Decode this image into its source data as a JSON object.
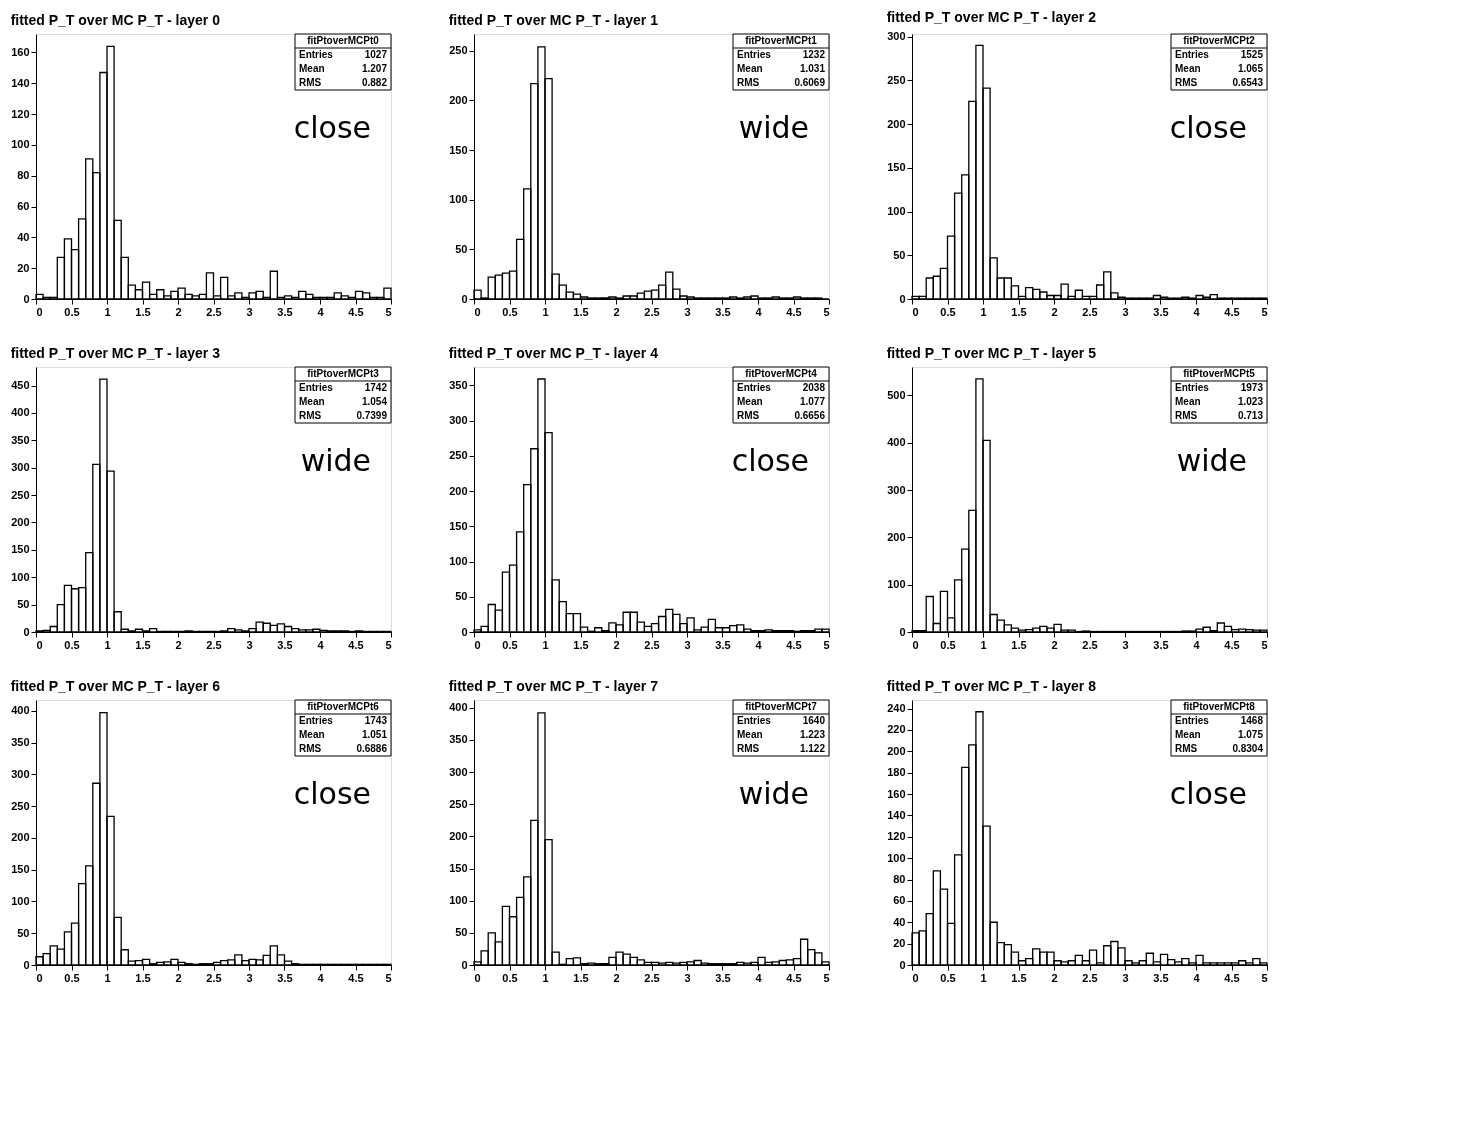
{
  "chart_data": [
    {
      "type": "histogram",
      "title": "fitted P_T over MC P_T - layer 0",
      "color": "#000000",
      "annotations": [
        "close",
        "fitPtoverMCPt0",
        "Entries",
        "1027",
        "Mean",
        "1.207",
        "RMS",
        "0.882"
      ],
      "xlim": [
        0,
        5
      ],
      "xticks": [
        0,
        0.5,
        1,
        1.5,
        2,
        2.5,
        3,
        3.5,
        4,
        4.5,
        5
      ],
      "ylim": [
        0,
        172
      ],
      "yticks": [
        0,
        20,
        40,
        60,
        80,
        100,
        120,
        140,
        160
      ],
      "bins": [
        0,
        0.1,
        0.2,
        0.3,
        0.4,
        0.5,
        0.6,
        0.7,
        0.8,
        0.9,
        1,
        1.1,
        1.2,
        1.3,
        1.4,
        1.5,
        1.6,
        1.7,
        1.8,
        1.9,
        2,
        2.1,
        2.2,
        2.3,
        2.4,
        2.5,
        2.6,
        2.7,
        2.8,
        2.9,
        3,
        3.1,
        3.2,
        3.3,
        3.4,
        3.5,
        3.6,
        3.7,
        3.8,
        3.9,
        4,
        4.1,
        4.2,
        4.3,
        4.4,
        4.5,
        4.6,
        4.7,
        4.8,
        4.9,
        5
      ],
      "values": [
        3,
        1,
        1,
        27,
        39,
        32,
        52,
        91,
        82,
        147,
        164,
        51,
        27,
        9,
        6,
        11,
        3,
        6,
        2,
        5,
        7,
        3,
        2,
        3,
        17,
        2,
        14,
        2,
        4,
        1,
        4,
        5,
        1,
        18,
        1,
        2,
        1,
        5,
        3,
        1,
        1,
        1,
        4,
        2,
        1,
        5,
        4,
        1,
        1,
        7
      ]
    },
    {
      "type": "histogram",
      "title": "fitted P_T over MC P_T - layer 1",
      "color": "#000000",
      "annotations": [
        "wide",
        "fitPtoverMCPt1",
        "Entries",
        "1232",
        "Mean",
        "1.031",
        "RMS",
        "0.6069"
      ],
      "xlim": [
        0,
        5
      ],
      "xticks": [
        0,
        0.5,
        1,
        1.5,
        2,
        2.5,
        3,
        3.5,
        4,
        4.5,
        5
      ],
      "ylim": [
        0,
        267
      ],
      "yticks": [
        0,
        50,
        100,
        150,
        200,
        250
      ],
      "bins": [
        0,
        0.1,
        0.2,
        0.3,
        0.4,
        0.5,
        0.6,
        0.7,
        0.8,
        0.9,
        1,
        1.1,
        1.2,
        1.3,
        1.4,
        1.5,
        1.6,
        1.7,
        1.8,
        1.9,
        2,
        2.1,
        2.2,
        2.3,
        2.4,
        2.5,
        2.6,
        2.7,
        2.8,
        2.9,
        3,
        3.1,
        3.2,
        3.3,
        3.4,
        3.5,
        3.6,
        3.7,
        3.8,
        3.9,
        4,
        4.1,
        4.2,
        4.3,
        4.4,
        4.5,
        4.6,
        4.7,
        4.8,
        4.9,
        5
      ],
      "values": [
        9,
        1,
        22,
        24,
        26,
        28,
        60,
        111,
        217,
        254,
        222,
        25,
        14,
        7,
        5,
        2,
        1,
        1,
        1,
        2,
        1,
        3,
        3,
        6,
        8,
        9,
        14,
        27,
        10,
        3,
        2,
        1,
        1,
        1,
        1,
        1,
        2,
        1,
        2,
        3,
        1,
        1,
        2,
        1,
        1,
        2,
        1,
        1,
        1,
        0
      ]
    },
    {
      "type": "histogram",
      "title": "fitted P_T over MC P_T - layer 2",
      "color": "#000000",
      "annotations": [
        "close",
        "fitPtoverMCPt2",
        "Entries",
        "1525",
        "Mean",
        "1.065",
        "RMS",
        "0.6543"
      ],
      "xlim": [
        0,
        5
      ],
      "xticks": [
        0,
        0.5,
        1,
        1.5,
        2,
        2.5,
        3,
        3.5,
        4,
        4.5,
        5
      ],
      "ylim": [
        0,
        303
      ],
      "yticks": [
        0,
        50,
        100,
        150,
        200,
        250,
        300
      ],
      "bins": [
        0,
        0.1,
        0.2,
        0.3,
        0.4,
        0.5,
        0.6,
        0.7,
        0.8,
        0.9,
        1,
        1.1,
        1.2,
        1.3,
        1.4,
        1.5,
        1.6,
        1.7,
        1.8,
        1.9,
        2,
        2.1,
        2.2,
        2.3,
        2.4,
        2.5,
        2.6,
        2.7,
        2.8,
        2.9,
        3,
        3.1,
        3.2,
        3.3,
        3.4,
        3.5,
        3.6,
        3.7,
        3.8,
        3.9,
        4,
        4.1,
        4.2,
        4.3,
        4.4,
        4.5,
        4.6,
        4.7,
        4.8,
        4.9,
        5
      ],
      "values": [
        3,
        3,
        24,
        26,
        35,
        72,
        121,
        142,
        226,
        290,
        241,
        47,
        24,
        24,
        15,
        3,
        13,
        11,
        8,
        4,
        4,
        17,
        3,
        10,
        3,
        3,
        16,
        31,
        7,
        2,
        1,
        1,
        1,
        1,
        4,
        2,
        1,
        1,
        2,
        1,
        4,
        2,
        5,
        1,
        1,
        1,
        1,
        1,
        1,
        1
      ]
    },
    {
      "type": "histogram",
      "title": "fitted P_T over MC P_T - layer 3",
      "color": "#000000",
      "annotations": [
        "wide",
        "fitPtoverMCPt3",
        "Entries",
        "1742",
        "Mean",
        "1.054",
        "RMS",
        "0.7399"
      ],
      "xlim": [
        0,
        5
      ],
      "xticks": [
        0,
        0.5,
        1,
        1.5,
        2,
        2.5,
        3,
        3.5,
        4,
        4.5,
        5
      ],
      "ylim": [
        0,
        484
      ],
      "yticks": [
        0,
        50,
        100,
        150,
        200,
        250,
        300,
        350,
        400,
        450
      ],
      "bins": [
        0,
        0.1,
        0.2,
        0.3,
        0.4,
        0.5,
        0.6,
        0.7,
        0.8,
        0.9,
        1,
        1.1,
        1.2,
        1.3,
        1.4,
        1.5,
        1.6,
        1.7,
        1.8,
        1.9,
        2,
        2.1,
        2.2,
        2.3,
        2.4,
        2.5,
        2.6,
        2.7,
        2.8,
        2.9,
        3,
        3.1,
        3.2,
        3.3,
        3.4,
        3.5,
        3.6,
        3.7,
        3.8,
        3.9,
        4,
        4.1,
        4.2,
        4.3,
        4.4,
        4.5,
        4.6,
        4.7,
        4.8,
        4.9,
        5
      ],
      "values": [
        2,
        3,
        10,
        50,
        85,
        79,
        81,
        145,
        306,
        462,
        294,
        37,
        5,
        2,
        5,
        2,
        6,
        1,
        1,
        1,
        1,
        2,
        1,
        1,
        1,
        1,
        2,
        6,
        4,
        2,
        6,
        18,
        16,
        12,
        15,
        10,
        6,
        4,
        4,
        5,
        3,
        2,
        2,
        2,
        1,
        2,
        1,
        1,
        1,
        1
      ]
    },
    {
      "type": "histogram",
      "title": "fitted P_T over MC P_T - layer 4",
      "color": "#000000",
      "annotations": [
        "close",
        "fitPtoverMCPt4",
        "Entries",
        "2038",
        "Mean",
        "1.077",
        "RMS",
        "0.6656"
      ],
      "xlim": [
        0,
        5
      ],
      "xticks": [
        0,
        0.5,
        1,
        1.5,
        2,
        2.5,
        3,
        3.5,
        4,
        4.5,
        5
      ],
      "ylim": [
        0,
        376
      ],
      "yticks": [
        0,
        50,
        100,
        150,
        200,
        250,
        300,
        350
      ],
      "bins": [
        0,
        0.1,
        0.2,
        0.3,
        0.4,
        0.5,
        0.6,
        0.7,
        0.8,
        0.9,
        1,
        1.1,
        1.2,
        1.3,
        1.4,
        1.5,
        1.6,
        1.7,
        1.8,
        1.9,
        2,
        2.1,
        2.2,
        2.3,
        2.4,
        2.5,
        2.6,
        2.7,
        2.8,
        2.9,
        3,
        3.1,
        3.2,
        3.3,
        3.4,
        3.5,
        3.6,
        3.7,
        3.8,
        3.9,
        4,
        4.1,
        4.2,
        4.3,
        4.4,
        4.5,
        4.6,
        4.7,
        4.8,
        4.9,
        5
      ],
      "values": [
        3,
        8,
        39,
        31,
        85,
        95,
        142,
        209,
        260,
        359,
        283,
        74,
        43,
        26,
        26,
        7,
        1,
        6,
        2,
        13,
        10,
        28,
        28,
        14,
        8,
        12,
        22,
        32,
        25,
        12,
        20,
        3,
        7,
        18,
        6,
        6,
        9,
        10,
        4,
        2,
        2,
        3,
        2,
        2,
        2,
        1,
        2,
        2,
        4,
        4
      ]
    },
    {
      "type": "histogram",
      "title": "fitted P_T over MC P_T - layer 5",
      "color": "#000000",
      "annotations": [
        "wide",
        "fitPtoverMCPt5",
        "Entries",
        "1973",
        "Mean",
        "1.023",
        "RMS",
        "0.713"
      ],
      "xlim": [
        0,
        5
      ],
      "xticks": [
        0,
        0.5,
        1,
        1.5,
        2,
        2.5,
        3,
        3.5,
        4,
        4.5,
        5
      ],
      "ylim": [
        0,
        560
      ],
      "yticks": [
        0,
        100,
        200,
        300,
        400,
        500
      ],
      "bins": [
        0,
        0.1,
        0.2,
        0.3,
        0.4,
        0.5,
        0.6,
        0.7,
        0.8,
        0.9,
        1,
        1.1,
        1.2,
        1.3,
        1.4,
        1.5,
        1.6,
        1.7,
        1.8,
        1.9,
        2,
        2.1,
        2.2,
        2.3,
        2.4,
        2.5,
        2.6,
        2.7,
        2.8,
        2.9,
        3,
        3.1,
        3.2,
        3.3,
        3.4,
        3.5,
        3.6,
        3.7,
        3.8,
        3.9,
        4,
        4.1,
        4.2,
        4.3,
        4.4,
        4.5,
        4.6,
        4.7,
        4.8,
        4.9,
        5
      ],
      "values": [
        3,
        3,
        75,
        18,
        86,
        30,
        110,
        175,
        257,
        535,
        405,
        37,
        25,
        15,
        8,
        4,
        5,
        8,
        12,
        8,
        16,
        4,
        4,
        1,
        2,
        1,
        1,
        1,
        1,
        1,
        1,
        1,
        1,
        1,
        1,
        1,
        1,
        1,
        2,
        2,
        6,
        10,
        3,
        19,
        12,
        5,
        6,
        5,
        4,
        4
      ]
    },
    {
      "type": "histogram",
      "title": "fitted P_T over MC P_T - layer 6",
      "color": "#000000",
      "annotations": [
        "close",
        "fitPtoverMCPt6",
        "Entries",
        "1743",
        "Mean",
        "1.051",
        "RMS",
        "0.6886"
      ],
      "xlim": [
        0,
        5
      ],
      "xticks": [
        0,
        0.5,
        1,
        1.5,
        2,
        2.5,
        3,
        3.5,
        4,
        4.5,
        5
      ],
      "ylim": [
        0,
        417
      ],
      "yticks": [
        0,
        50,
        100,
        150,
        200,
        250,
        300,
        350,
        400
      ],
      "bins": [
        0,
        0.1,
        0.2,
        0.3,
        0.4,
        0.5,
        0.6,
        0.7,
        0.8,
        0.9,
        1,
        1.1,
        1.2,
        1.3,
        1.4,
        1.5,
        1.6,
        1.7,
        1.8,
        1.9,
        2,
        2.1,
        2.2,
        2.3,
        2.4,
        2.5,
        2.6,
        2.7,
        2.8,
        2.9,
        3,
        3.1,
        3.2,
        3.3,
        3.4,
        3.5,
        3.6,
        3.7,
        3.8,
        3.9,
        4,
        4.1,
        4.2,
        4.3,
        4.4,
        4.5,
        4.6,
        4.7,
        4.8,
        4.9,
        5
      ],
      "values": [
        13,
        18,
        30,
        25,
        52,
        66,
        128,
        156,
        286,
        397,
        234,
        75,
        24,
        6,
        7,
        9,
        2,
        4,
        5,
        9,
        4,
        2,
        1,
        2,
        2,
        4,
        7,
        8,
        16,
        7,
        9,
        8,
        15,
        30,
        16,
        6,
        2,
        1,
        1,
        1,
        1,
        1,
        1,
        1,
        1,
        1,
        1,
        1,
        1,
        1
      ]
    },
    {
      "type": "histogram",
      "title": "fitted P_T over MC P_T - layer 7",
      "color": "#000000",
      "annotations": [
        "wide",
        "fitPtoverMCPt7",
        "Entries",
        "1640",
        "Mean",
        "1.223",
        "RMS",
        "1.122"
      ],
      "xlim": [
        0,
        5
      ],
      "xticks": [
        0,
        0.5,
        1,
        1.5,
        2,
        2.5,
        3,
        3.5,
        4,
        4.5,
        5
      ],
      "ylim": [
        0,
        412
      ],
      "yticks": [
        0,
        50,
        100,
        150,
        200,
        250,
        300,
        350,
        400
      ],
      "bins": [
        0,
        0.1,
        0.2,
        0.3,
        0.4,
        0.5,
        0.6,
        0.7,
        0.8,
        0.9,
        1,
        1.1,
        1.2,
        1.3,
        1.4,
        1.5,
        1.6,
        1.7,
        1.8,
        1.9,
        2,
        2.1,
        2.2,
        2.3,
        2.4,
        2.5,
        2.6,
        2.7,
        2.8,
        2.9,
        3,
        3.1,
        3.2,
        3.3,
        3.4,
        3.5,
        3.6,
        3.7,
        3.8,
        3.9,
        4,
        4.1,
        4.2,
        4.3,
        4.4,
        4.5,
        4.6,
        4.7,
        4.8,
        4.9,
        5
      ],
      "values": [
        5,
        22,
        50,
        36,
        91,
        75,
        105,
        137,
        225,
        392,
        195,
        20,
        1,
        10,
        11,
        2,
        3,
        2,
        2,
        12,
        20,
        17,
        12,
        8,
        4,
        4,
        3,
        4,
        3,
        4,
        5,
        7,
        3,
        2,
        2,
        2,
        2,
        4,
        3,
        4,
        12,
        4,
        5,
        7,
        8,
        10,
        40,
        24,
        19,
        5
      ]
    },
    {
      "type": "histogram",
      "title": "fitted P_T over MC P_T - layer 8",
      "color": "#000000",
      "annotations": [
        "close",
        "fitPtoverMCPt8",
        "Entries",
        "1468",
        "Mean",
        "1.075",
        "RMS",
        "0.8304"
      ],
      "xlim": [
        0,
        5
      ],
      "xticks": [
        0,
        0.5,
        1,
        1.5,
        2,
        2.5,
        3,
        3.5,
        4,
        4.5,
        5
      ],
      "ylim": [
        0,
        248
      ],
      "yticks": [
        0,
        20,
        40,
        60,
        80,
        100,
        120,
        140,
        160,
        180,
        200,
        220,
        240
      ],
      "bins": [
        0,
        0.1,
        0.2,
        0.3,
        0.4,
        0.5,
        0.6,
        0.7,
        0.8,
        0.9,
        1,
        1.1,
        1.2,
        1.3,
        1.4,
        1.5,
        1.6,
        1.7,
        1.8,
        1.9,
        2,
        2.1,
        2.2,
        2.3,
        2.4,
        2.5,
        2.6,
        2.7,
        2.8,
        2.9,
        3,
        3.1,
        3.2,
        3.3,
        3.4,
        3.5,
        3.6,
        3.7,
        3.8,
        3.9,
        4,
        4.1,
        4.2,
        4.3,
        4.4,
        4.5,
        4.6,
        4.7,
        4.8,
        4.9,
        5
      ],
      "values": [
        30,
        32,
        48,
        88,
        71,
        39,
        103,
        185,
        206,
        237,
        130,
        40,
        21,
        19,
        12,
        4,
        6,
        15,
        12,
        12,
        4,
        3,
        4,
        9,
        4,
        14,
        2,
        18,
        22,
        16,
        4,
        2,
        4,
        11,
        3,
        10,
        5,
        3,
        6,
        2,
        9,
        2,
        2,
        2,
        2,
        2,
        4,
        2,
        6,
        2
      ]
    }
  ]
}
